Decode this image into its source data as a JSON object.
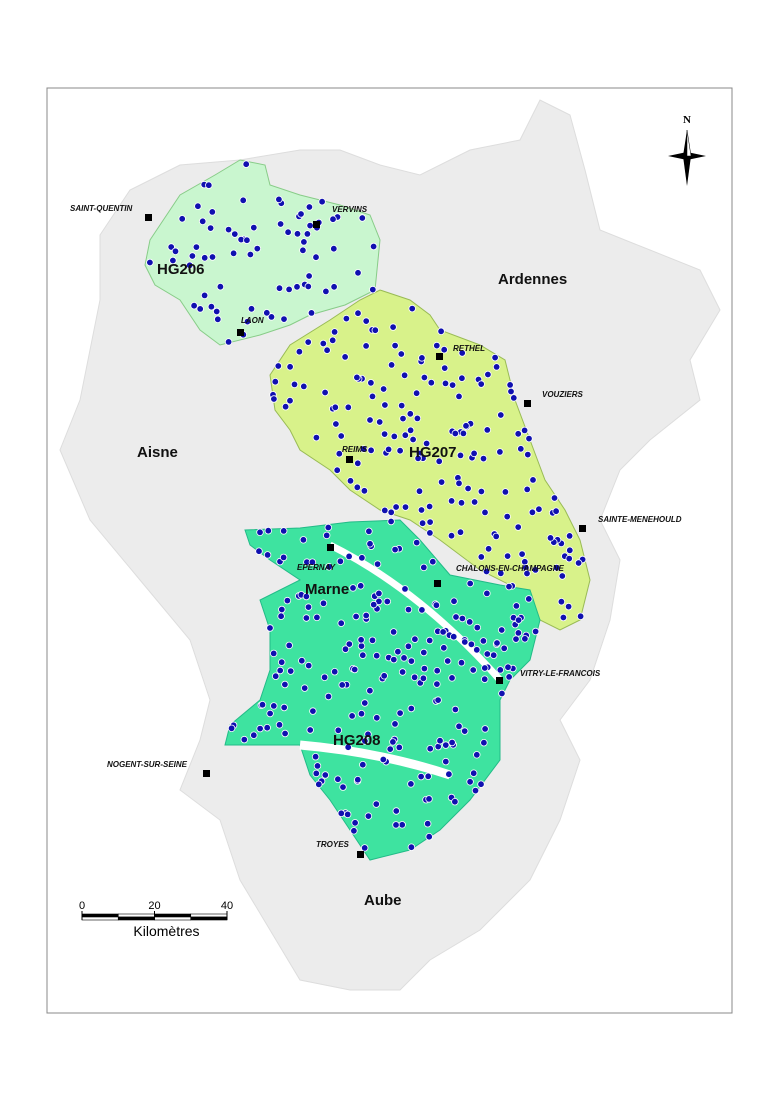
{
  "map": {
    "north": "N",
    "regions": [
      {
        "name": "Aisne"
      },
      {
        "name": "Ardennes"
      },
      {
        "name": "Marne"
      },
      {
        "name": "Aube"
      }
    ],
    "aquifers": [
      {
        "name": "HG206"
      },
      {
        "name": "HG207"
      },
      {
        "name": "HG208"
      }
    ],
    "towns": [
      {
        "name": "SAINT-QUENTIN"
      },
      {
        "name": "VERVINS"
      },
      {
        "name": "LAON"
      },
      {
        "name": "RETHEL"
      },
      {
        "name": "VOUZIERS"
      },
      {
        "name": "REIMS"
      },
      {
        "name": "SAINTE-MENEHOULD"
      },
      {
        "name": "EPERNAY"
      },
      {
        "name": "CHALONS-EN-CHAMPAGNE"
      },
      {
        "name": "VITRY-LE-FRANCOIS"
      },
      {
        "name": "NOGENT-SUR-SEINE"
      },
      {
        "name": "TROYES"
      }
    ],
    "scale_bar": {
      "ticks": [
        0,
        20,
        40
      ],
      "unit": "Kilomètres"
    }
  }
}
